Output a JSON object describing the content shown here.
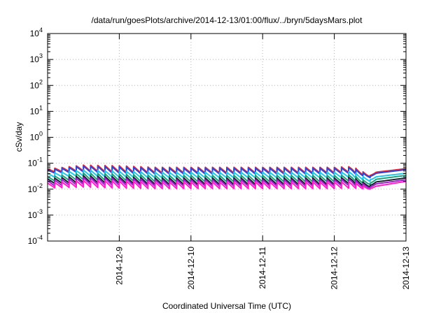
{
  "chart_data": {
    "type": "line",
    "title": "/data/run/goesPlots/archive/2014-12-13/01:00/flux/../bryn/5daysMars.plot",
    "xlabel": "Coordinated Universal Time (UTC)",
    "ylabel": "cSv/day",
    "y_scale": "log",
    "ylim": [
      0.0001,
      10000
    ],
    "xlim": [
      "2014-12-08 00:00",
      "2014-12-13 00:00"
    ],
    "grid": true,
    "legend": "none",
    "y_ticks": [
      {
        "value": 0.0001,
        "base": "10",
        "exp": "-4"
      },
      {
        "value": 0.001,
        "base": "10",
        "exp": "-3"
      },
      {
        "value": 0.01,
        "base": "10",
        "exp": "-2"
      },
      {
        "value": 0.1,
        "base": "10",
        "exp": "-1"
      },
      {
        "value": 1,
        "base": "10",
        "exp": "0"
      },
      {
        "value": 10,
        "base": "10",
        "exp": "1"
      },
      {
        "value": 100,
        "base": "10",
        "exp": "2"
      },
      {
        "value": 1000,
        "base": "10",
        "exp": "3"
      },
      {
        "value": 10000,
        "base": "10",
        "exp": "4"
      }
    ],
    "x_ticks": [
      "2014-12-9",
      "2014-12-10",
      "2014-12-11",
      "2014-12-12",
      "2014-12-13"
    ],
    "cycle_hours": 2.4,
    "x": [
      "2014-12-08 00:00",
      "2014-12-08 12:00",
      "2014-12-09 00:00",
      "2014-12-09 12:00",
      "2014-12-10 00:00",
      "2014-12-10 12:00",
      "2014-12-11 00:00",
      "2014-12-11 12:00",
      "2014-12-12 00:00",
      "2014-12-12 06:00",
      "2014-12-12 12:00",
      "2014-12-12 14:00",
      "2014-12-13 00:00"
    ],
    "series": [
      {
        "color": "#e8283c",
        "peak": [
          0.06,
          0.085,
          0.08,
          0.07,
          0.07,
          0.07,
          0.07,
          0.07,
          0.07,
          0.075,
          0.034,
          0.045,
          0.062
        ],
        "trough": [
          0.045,
          0.05,
          0.045,
          0.042,
          0.042,
          0.042,
          0.042,
          0.042,
          0.042,
          0.045,
          0.03,
          0.045,
          0.062
        ]
      },
      {
        "color": "#2a46d8",
        "peak": [
          0.055,
          0.078,
          0.072,
          0.064,
          0.064,
          0.064,
          0.064,
          0.064,
          0.064,
          0.068,
          0.031,
          0.041,
          0.057
        ],
        "trough": [
          0.04,
          0.046,
          0.041,
          0.038,
          0.038,
          0.038,
          0.038,
          0.038,
          0.038,
          0.041,
          0.028,
          0.041,
          0.057
        ]
      },
      {
        "color": "#1ec8e6",
        "peak": [
          0.04,
          0.055,
          0.05,
          0.045,
          0.045,
          0.045,
          0.045,
          0.045,
          0.045,
          0.048,
          0.023,
          0.03,
          0.041
        ],
        "trough": [
          0.028,
          0.032,
          0.029,
          0.027,
          0.027,
          0.027,
          0.027,
          0.027,
          0.027,
          0.029,
          0.02,
          0.03,
          0.041
        ]
      },
      {
        "color": "#1aa37a",
        "peak": [
          0.03,
          0.042,
          0.038,
          0.034,
          0.034,
          0.034,
          0.034,
          0.034,
          0.034,
          0.036,
          0.017,
          0.024,
          0.034
        ],
        "trough": [
          0.02,
          0.023,
          0.021,
          0.019,
          0.019,
          0.019,
          0.019,
          0.019,
          0.019,
          0.021,
          0.015,
          0.024,
          0.034
        ]
      },
      {
        "color": "#1c1c2e",
        "peak": [
          0.025,
          0.033,
          0.03,
          0.027,
          0.027,
          0.027,
          0.027,
          0.027,
          0.027,
          0.029,
          0.014,
          0.019,
          0.027
        ],
        "trough": [
          0.016,
          0.018,
          0.017,
          0.015,
          0.015,
          0.015,
          0.015,
          0.015,
          0.015,
          0.017,
          0.012,
          0.019,
          0.027
        ]
      },
      {
        "color": "#a01ed0",
        "peak": [
          0.021,
          0.028,
          0.026,
          0.023,
          0.023,
          0.023,
          0.023,
          0.023,
          0.023,
          0.025,
          0.012,
          0.016,
          0.023
        ],
        "trough": [
          0.013,
          0.015,
          0.014,
          0.013,
          0.013,
          0.013,
          0.013,
          0.013,
          0.013,
          0.014,
          0.011,
          0.016,
          0.023
        ]
      },
      {
        "color": "#ff1ec8",
        "peak": [
          0.017,
          0.022,
          0.021,
          0.019,
          0.019,
          0.019,
          0.019,
          0.019,
          0.019,
          0.02,
          0.0105,
          0.013,
          0.02
        ],
        "trough": [
          0.011,
          0.012,
          0.011,
          0.0105,
          0.0105,
          0.0105,
          0.0105,
          0.0105,
          0.0105,
          0.011,
          0.01,
          0.013,
          0.02
        ]
      }
    ]
  }
}
